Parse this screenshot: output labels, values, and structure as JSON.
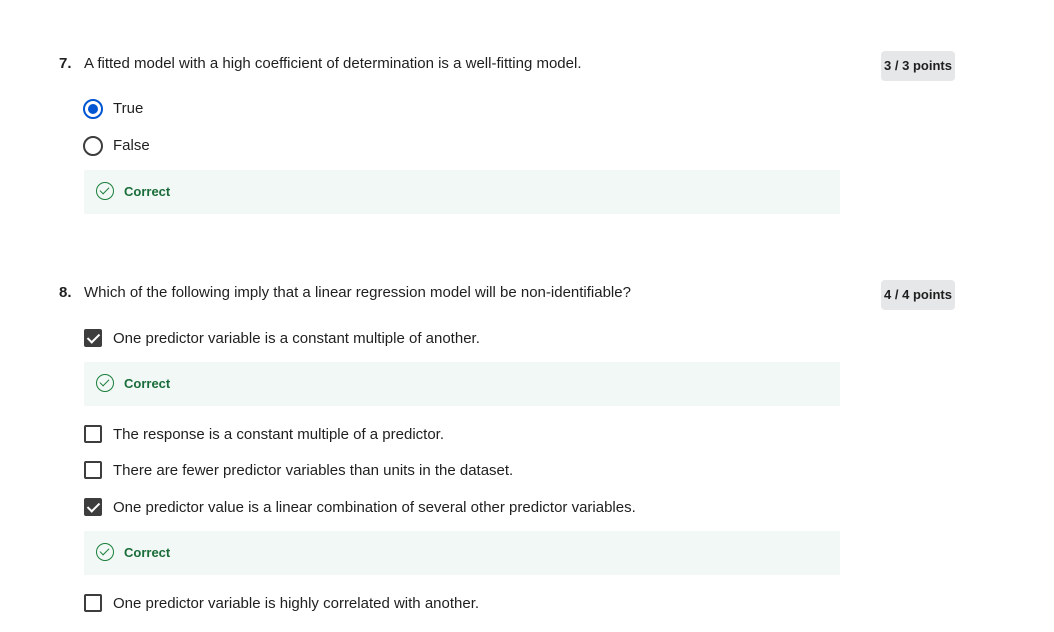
{
  "questions": [
    {
      "number": "7.",
      "text": "A fitted model with a high coefficient of determination is a well-fitting model.",
      "points": "3 / 3 points",
      "type": "radio",
      "options": [
        {
          "label": "True",
          "selected": true
        },
        {
          "label": "False",
          "selected": false
        }
      ],
      "feedback": "Correct"
    },
    {
      "number": "8.",
      "text": "Which of the following imply that a linear regression model will be non-identifiable?",
      "points": "4 / 4 points",
      "type": "checkbox",
      "options": [
        {
          "label": "One predictor variable is a constant multiple of another.",
          "checked": true,
          "feedback": "Correct"
        },
        {
          "label": "The response is a constant multiple of a predictor.",
          "checked": false
        },
        {
          "label": "There are fewer predictor variables than units in the dataset.",
          "checked": false
        },
        {
          "label": "One predictor value is a linear combination of several other predictor variables.",
          "checked": true,
          "feedback": "Correct"
        },
        {
          "label": "One predictor variable is highly correlated with another.",
          "checked": false
        }
      ]
    }
  ],
  "colors": {
    "accent": "#0056d2",
    "correct_text": "#1a6d3a",
    "feedback_bg": "#f2f8f5",
    "points_bg": "#e5e7e8",
    "checkbox_fill": "#3d3d3d"
  }
}
